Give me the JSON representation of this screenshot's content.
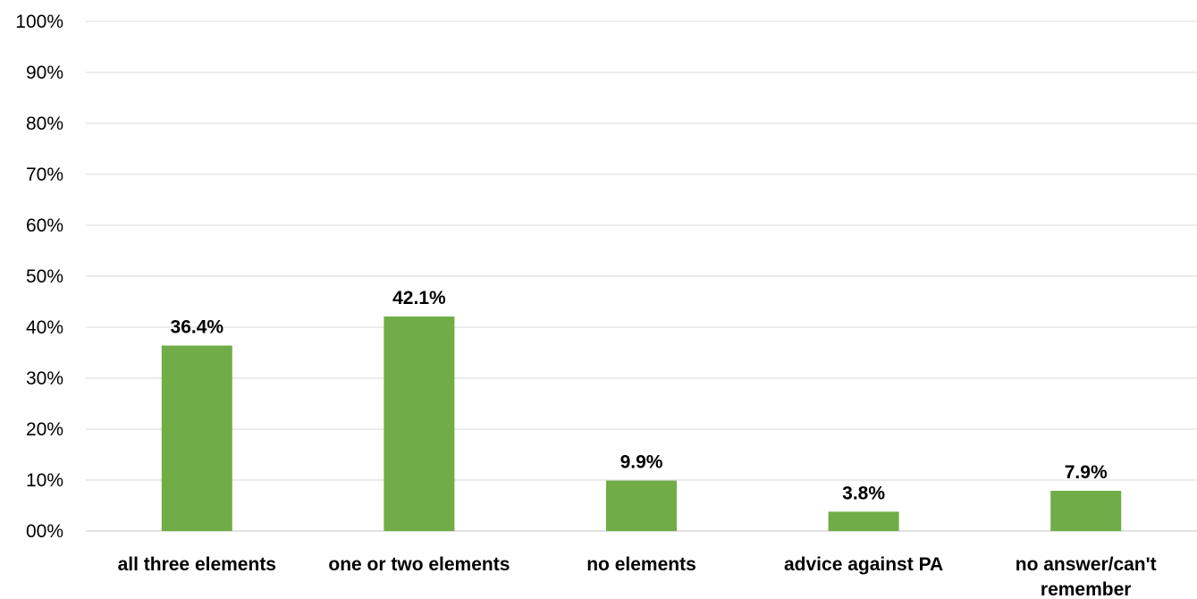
{
  "chart_data": {
    "type": "bar",
    "title": "",
    "xlabel": "",
    "ylabel": "",
    "categories": [
      "all three elements",
      "one or two elements",
      "no elements",
      "advice against PA",
      "no answer/can't remember"
    ],
    "category_lines": [
      [
        "all three elements"
      ],
      [
        "one or two elements"
      ],
      [
        "no elements"
      ],
      [
        "advice against PA"
      ],
      [
        "no answer/can't",
        "remember"
      ]
    ],
    "values": [
      36.4,
      42.1,
      9.9,
      3.8,
      7.9
    ],
    "data_labels": [
      "36.4%",
      "42.1%",
      "9.9%",
      "3.8%",
      "7.9%"
    ],
    "ylim": [
      0,
      100
    ],
    "yticks": [
      0,
      10,
      20,
      30,
      40,
      50,
      60,
      70,
      80,
      90,
      100
    ],
    "ytick_labels": [
      "00%",
      "10%",
      "20%",
      "30%",
      "40%",
      "50%",
      "60%",
      "70%",
      "80%",
      "90%",
      "100%"
    ],
    "grid": true,
    "legend": "none",
    "bar_color": "#70ad47",
    "gridline_color": "#d9d9d9"
  }
}
